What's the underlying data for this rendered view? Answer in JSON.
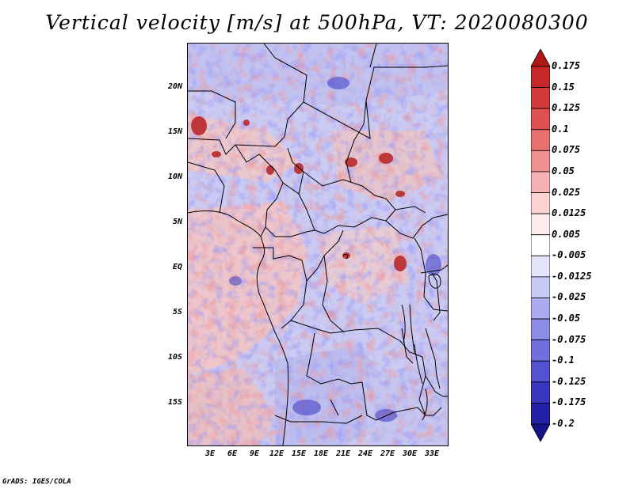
{
  "title": "Vertical velocity [m/s] at 500hPa, VT: 2020080300",
  "credit": "GrADS: IGES/COLA",
  "map": {
    "lat_labels": [
      "20N",
      "15N",
      "10N",
      "5N",
      "EQ",
      "5S",
      "10S",
      "15S"
    ],
    "lon_labels": [
      "3E",
      "6E",
      "9E",
      "12E",
      "15E",
      "18E",
      "21E",
      "24E",
      "27E",
      "30E",
      "33E"
    ],
    "lat_range": [
      -20,
      24.5
    ],
    "lon_range": [
      0,
      35
    ]
  },
  "legend": {
    "levels": [
      "0.175",
      "0.15",
      "0.125",
      "0.1",
      "0.075",
      "0.05",
      "0.025",
      "0.0125",
      "0.005",
      "-0.005",
      "-0.0125",
      "-0.025",
      "-0.05",
      "-0.075",
      "-0.1",
      "-0.125",
      "-0.175",
      "-0.2"
    ],
    "colors": [
      "#b01818",
      "#c62828",
      "#d43a3a",
      "#e05050",
      "#e87070",
      "#f09090",
      "#f7b3b3",
      "#fbd3d3",
      "#fdecec",
      "#ffffff",
      "#e4e4fb",
      "#c9c9f6",
      "#ababf0",
      "#8d8de8",
      "#6f6fde",
      "#5252d2",
      "#3737c2",
      "#2222a8",
      "#14148c"
    ]
  }
}
